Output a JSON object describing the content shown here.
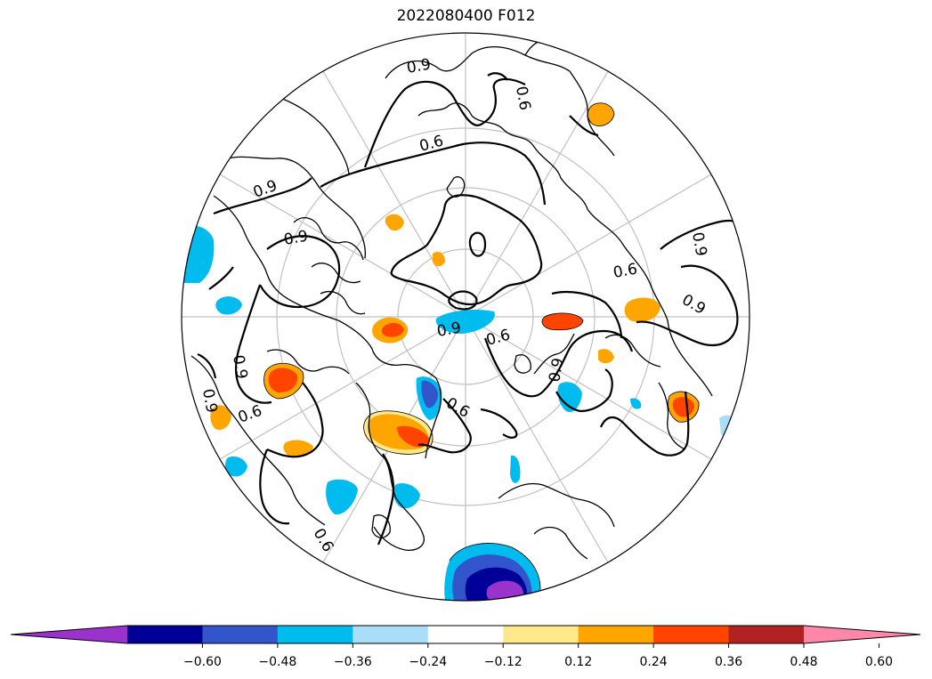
{
  "title": "2022080400 F012",
  "map": {
    "projection": "north-polar-stereographic",
    "contour_label": "0.6",
    "contour_label_alt": "0.9"
  },
  "colorbar": {
    "ticks": [
      "−0.60",
      "−0.48",
      "−0.36",
      "−0.24",
      "−0.12",
      "0.12",
      "0.24",
      "0.36",
      "0.48",
      "0.60"
    ],
    "colors": [
      "#9933cc",
      "#000099",
      "#3355cc",
      "#00bbee",
      "#aaddf8",
      "#ffffff",
      "#ffe98a",
      "#ffa500",
      "#ff4400",
      "#b22222",
      "#ff88aa"
    ],
    "extend": "both"
  }
}
